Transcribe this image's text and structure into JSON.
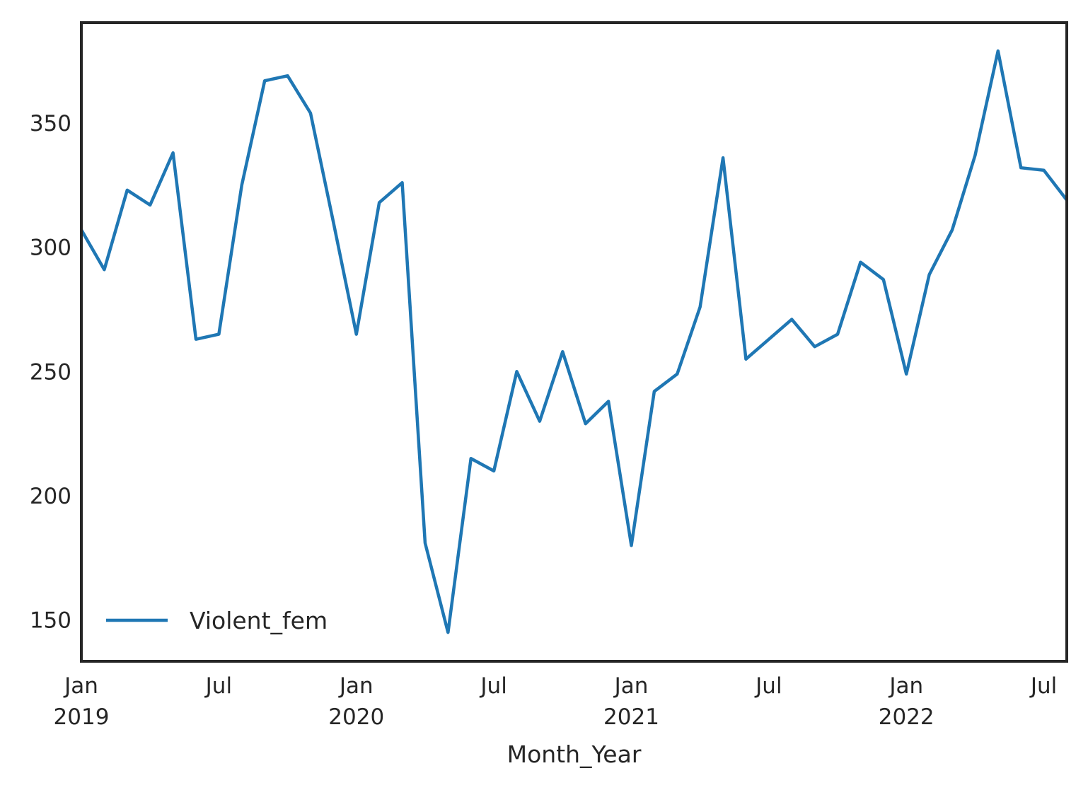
{
  "chart_data": {
    "type": "line",
    "xlabel": "Month_Year",
    "ylabel": "",
    "x_ticks": [
      {
        "date": "2019-01",
        "label": "Jan",
        "sublabel": "2019"
      },
      {
        "date": "2019-07",
        "label": "Jul",
        "sublabel": ""
      },
      {
        "date": "2020-01",
        "label": "Jan",
        "sublabel": "2020"
      },
      {
        "date": "2020-07",
        "label": "Jul",
        "sublabel": ""
      },
      {
        "date": "2021-01",
        "label": "Jan",
        "sublabel": "2021"
      },
      {
        "date": "2021-07",
        "label": "Jul",
        "sublabel": ""
      },
      {
        "date": "2022-01",
        "label": "Jan",
        "sublabel": "2022"
      },
      {
        "date": "2022-07",
        "label": "Jul",
        "sublabel": ""
      }
    ],
    "xlim": [
      "2019-01",
      "2022-08"
    ],
    "y_ticks": [
      150,
      200,
      250,
      300,
      350
    ],
    "ylim": [
      133.4,
      390.4
    ],
    "grid": false,
    "legend_position": "lower-left",
    "series": [
      {
        "name": "Violent_fem",
        "color": "#1f77b4",
        "x": [
          "2019-01",
          "2019-02",
          "2019-03",
          "2019-04",
          "2019-05",
          "2019-06",
          "2019-07",
          "2019-08",
          "2019-09",
          "2019-10",
          "2019-11",
          "2019-12",
          "2020-01",
          "2020-02",
          "2020-03",
          "2020-04",
          "2020-05",
          "2020-06",
          "2020-07",
          "2020-08",
          "2020-09",
          "2020-10",
          "2020-11",
          "2020-12",
          "2021-01",
          "2021-02",
          "2021-03",
          "2021-04",
          "2021-05",
          "2021-06",
          "2021-07",
          "2021-08",
          "2021-09",
          "2021-10",
          "2021-11",
          "2021-12",
          "2022-01",
          "2022-02",
          "2022-03",
          "2022-04",
          "2022-05",
          "2022-06",
          "2022-07",
          "2022-08"
        ],
        "values": [
          307,
          291,
          323,
          317,
          338,
          263,
          265,
          325,
          367,
          369,
          354,
          310,
          265,
          318,
          326,
          181,
          145,
          215,
          210,
          250,
          230,
          258,
          229,
          238,
          180,
          242,
          249,
          276,
          336,
          255,
          263,
          271,
          260,
          265,
          294,
          287,
          249,
          289,
          307,
          337,
          379,
          332,
          331,
          319
        ]
      }
    ]
  }
}
